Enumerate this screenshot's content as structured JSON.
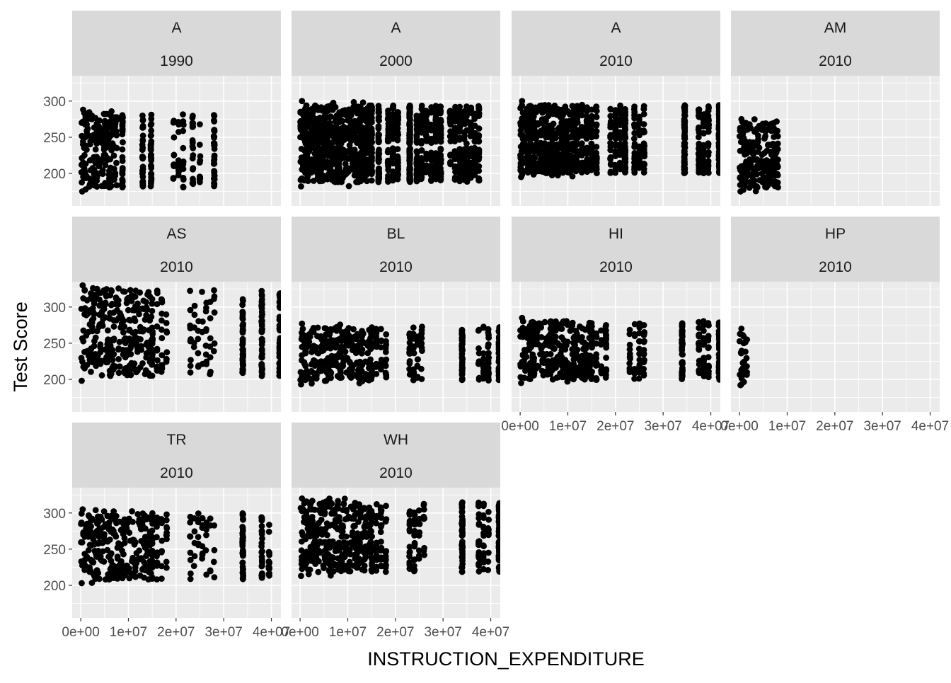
{
  "chart_data": {
    "type": "scatter",
    "xlabel": "INSTRUCTION_EXPENDITURE",
    "ylabel": "Test Score",
    "ylim": [
      155,
      335
    ],
    "xlim": [
      -1800000,
      42000000
    ],
    "y_ticks": [
      200,
      250,
      300
    ],
    "y_tick_labels": [
      "200",
      "250",
      "300"
    ],
    "x_ticks": [
      0,
      10000000,
      20000000,
      30000000,
      40000000
    ],
    "x_tick_labels": [
      "0e+00",
      "1e+07",
      "2e+07",
      "3e+07",
      "4e+07"
    ],
    "grid": true,
    "point_color": "#000000",
    "panel_background": "#ebebeb",
    "strip_background": "#d9d9d9",
    "grid_color": "#ffffff",
    "x_value_groups": [
      [
        100000,
        8500000,
        0.6
      ],
      [
        9000000,
        10000000,
        0.15
      ],
      [
        12500000,
        13500000,
        0.07
      ],
      [
        15000000,
        17000000,
        0.06
      ],
      [
        20000000,
        20500000,
        0.02
      ],
      [
        22500000,
        22800000,
        0.01
      ],
      [
        25000000,
        25500000,
        0.04
      ],
      [
        27500000,
        28000000,
        0.03
      ],
      [
        34000000,
        35500000,
        0.01
      ],
      [
        38500000,
        39500000,
        0.005
      ]
    ],
    "panels": [
      {
        "race": "A",
        "year": "1990",
        "y_range": [
          175,
          288
        ],
        "x_bands": [
          [
            200000,
            7500000
          ],
          [
            8500000,
            9000000
          ],
          [
            12500000,
            13500000
          ],
          [
            14500000,
            15000000
          ],
          [
            19500000,
            21500000
          ],
          [
            23500000,
            25000000
          ],
          [
            27500000,
            28500000
          ]
        ],
        "n": 380
      },
      {
        "race": "A",
        "year": "2000",
        "y_range": [
          182,
          300
        ],
        "x_bands": [
          [
            100000,
            14500000
          ],
          [
            15000000,
            16500000
          ],
          [
            18500000,
            20500000
          ],
          [
            22500000,
            23500000
          ],
          [
            24500000,
            26500000
          ],
          [
            27500000,
            29500000
          ],
          [
            31500000,
            34500000
          ],
          [
            35000000,
            37500000
          ]
        ],
        "n": 1400
      },
      {
        "race": "A",
        "year": "2010",
        "y_range": [
          195,
          300
        ],
        "x_bands": [
          [
            100000,
            12000000
          ],
          [
            12000000,
            14000000
          ],
          [
            14000000,
            16000000
          ],
          [
            19000000,
            21000000
          ],
          [
            21500000,
            22500000
          ],
          [
            24000000,
            26000000
          ],
          [
            34000000,
            35000000
          ],
          [
            37500000,
            39500000
          ],
          [
            41500000,
            42000000
          ]
        ],
        "n": 1100
      },
      {
        "race": "AM",
        "year": "2010",
        "y_range": [
          175,
          275
        ],
        "x_bands": [
          [
            100000,
            8000000
          ]
        ],
        "n": 220
      },
      {
        "race": "AS",
        "year": "2010",
        "y_range": [
          198,
          330
        ],
        "x_bands": [
          [
            100000,
            15000000
          ],
          [
            15000000,
            18000000
          ],
          [
            23000000,
            28000000
          ],
          [
            33500000,
            34500000
          ],
          [
            37500000,
            38500000
          ],
          [
            41500000,
            42000000
          ]
        ],
        "n": 520
      },
      {
        "race": "BL",
        "year": "2010",
        "y_range": [
          193,
          277
        ],
        "x_bands": [
          [
            100000,
            15000000
          ],
          [
            15000000,
            18000000
          ],
          [
            23000000,
            25500000
          ],
          [
            33500000,
            34500000
          ],
          [
            37500000,
            39500000
          ],
          [
            41500000,
            42000000
          ]
        ],
        "n": 520
      },
      {
        "race": "HI",
        "year": "2010",
        "y_range": [
          195,
          285
        ],
        "x_bands": [
          [
            100000,
            15000000
          ],
          [
            15000000,
            18000000
          ],
          [
            23000000,
            26000000
          ],
          [
            33500000,
            34500000
          ],
          [
            37500000,
            39500000
          ],
          [
            41500000,
            42000000
          ]
        ],
        "n": 560
      },
      {
        "race": "HP",
        "year": "2010",
        "y_range": [
          192,
          270
        ],
        "x_bands": [
          [
            100000,
            1500000
          ]
        ],
        "n": 30
      },
      {
        "race": "TR",
        "year": "2010",
        "y_range": [
          203,
          305
        ],
        "x_bands": [
          [
            100000,
            15000000
          ],
          [
            15000000,
            18000000
          ],
          [
            23000000,
            28000000
          ],
          [
            33500000,
            34500000
          ],
          [
            38000000,
            39500000
          ]
        ],
        "n": 420
      },
      {
        "race": "WH",
        "year": "2010",
        "y_range": [
          213,
          320
        ],
        "x_bands": [
          [
            100000,
            15000000
          ],
          [
            15000000,
            18000000
          ],
          [
            23000000,
            26000000
          ],
          [
            33500000,
            34500000
          ],
          [
            37500000,
            39500000
          ],
          [
            41500000,
            42000000
          ]
        ],
        "n": 600
      }
    ]
  }
}
